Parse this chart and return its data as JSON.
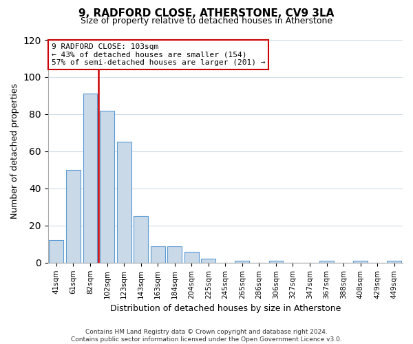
{
  "title": "9, RADFORD CLOSE, ATHERSTONE, CV9 3LA",
  "subtitle": "Size of property relative to detached houses in Atherstone",
  "xlabel": "Distribution of detached houses by size in Atherstone",
  "ylabel": "Number of detached properties",
  "bar_labels": [
    "41sqm",
    "61sqm",
    "82sqm",
    "102sqm",
    "123sqm",
    "143sqm",
    "163sqm",
    "184sqm",
    "204sqm",
    "225sqm",
    "245sqm",
    "265sqm",
    "286sqm",
    "306sqm",
    "327sqm",
    "347sqm",
    "367sqm",
    "388sqm",
    "408sqm",
    "429sqm",
    "449sqm"
  ],
  "bar_heights": [
    12,
    50,
    91,
    82,
    65,
    25,
    9,
    9,
    6,
    2,
    0,
    1,
    0,
    1,
    0,
    0,
    1,
    0,
    1,
    0,
    1
  ],
  "bar_color": "#c9d9e8",
  "bar_edgecolor": "#5b9bd5",
  "vline_x": 3.0,
  "vline_color": "#cc0000",
  "ylim": [
    0,
    120
  ],
  "yticks": [
    0,
    20,
    40,
    60,
    80,
    100,
    120
  ],
  "annotation_title": "9 RADFORD CLOSE: 103sqm",
  "annotation_line1": "← 43% of detached houses are smaller (154)",
  "annotation_line2": "57% of semi-detached houses are larger (201) →",
  "annotation_box_color": "#ffffff",
  "annotation_box_edgecolor": "#cc0000",
  "footer_line1": "Contains HM Land Registry data © Crown copyright and database right 2024.",
  "footer_line2": "Contains public sector information licensed under the Open Government Licence v3.0.",
  "background_color": "#ffffff",
  "grid_color": "#d0dce8"
}
